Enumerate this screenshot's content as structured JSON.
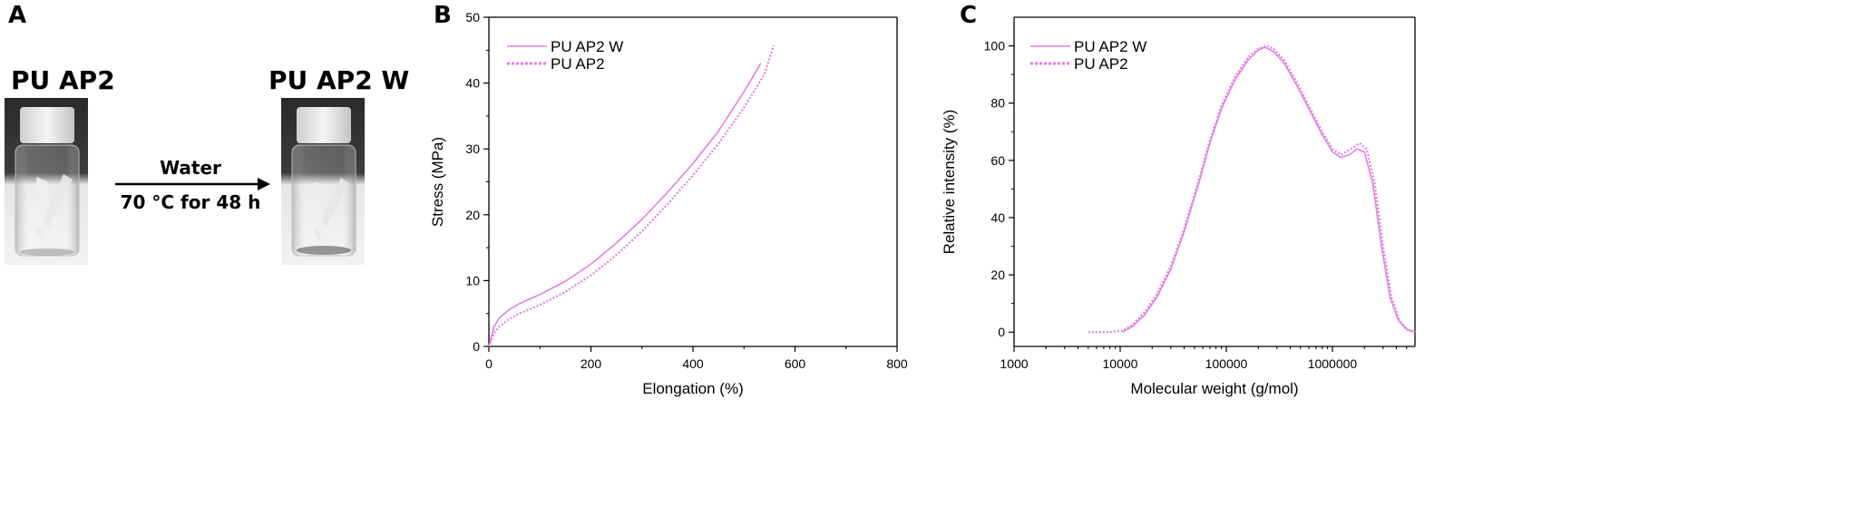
{
  "panels": {
    "a": {
      "letter": "A",
      "left_label": "PU AP2",
      "right_label": "PU AP2 W",
      "arrow_top": "Water",
      "arrow_bottom": "70 °C for 48 h"
    },
    "b": {
      "letter": "B"
    },
    "c": {
      "letter": "C"
    }
  },
  "chart_data": [
    {
      "type": "line",
      "xlabel": "Elongation (%)",
      "ylabel": "Stress (MPa)",
      "xlim": [
        0,
        800
      ],
      "ylim": [
        0,
        50
      ],
      "xticks": [
        0,
        200,
        400,
        600,
        800
      ],
      "yticks": [
        0,
        10,
        20,
        30,
        40,
        50
      ],
      "grid": false,
      "legend": "top-left",
      "series": [
        {
          "name": "PU AP2 W",
          "style": "solid",
          "color": "#e47ee4",
          "x": [
            0,
            10,
            20,
            40,
            60,
            100,
            150,
            200,
            250,
            300,
            350,
            400,
            450,
            500,
            533
          ],
          "y": [
            0,
            3.0,
            4.3,
            5.6,
            6.5,
            7.9,
            9.9,
            12.5,
            15.7,
            19.3,
            23.4,
            27.8,
            32.7,
            38.7,
            43.0
          ]
        },
        {
          "name": "PU AP2",
          "style": "dotted",
          "color": "#e47ee4",
          "x": [
            0,
            10,
            20,
            40,
            60,
            100,
            150,
            200,
            250,
            300,
            350,
            400,
            450,
            500,
            540,
            558
          ],
          "y": [
            0,
            2.0,
            3.0,
            4.2,
            5.0,
            6.3,
            8.3,
            10.8,
            13.9,
            17.5,
            21.6,
            26.0,
            30.8,
            36.3,
            41.3,
            45.7
          ]
        }
      ]
    },
    {
      "type": "line",
      "xlabel": "Molecular weight (g/mol)",
      "ylabel": "Relative intensity (%)",
      "xscale": "log",
      "xlim": [
        1000,
        6000000
      ],
      "ylim": [
        -5,
        110
      ],
      "xticks": [
        1000,
        10000,
        100000,
        1000000
      ],
      "yticks": [
        0,
        20,
        40,
        60,
        80,
        100
      ],
      "grid": false,
      "legend": "top-left",
      "series": [
        {
          "name": "PU AP2 W",
          "style": "solid",
          "color": "#e47ee4",
          "x": [
            10500,
            13000,
            17000,
            22000,
            30000,
            40000,
            55000,
            70000,
            90000,
            120000,
            160000,
            200000,
            230000,
            280000,
            350000,
            450000,
            600000,
            800000,
            1000000,
            1200000,
            1450000,
            1700000,
            2000000,
            2400000,
            2900000,
            3500000,
            4200000,
            5000000,
            6000000
          ],
          "y": [
            0,
            2,
            6,
            12,
            22,
            35,
            52,
            66,
            78,
            88,
            95,
            98.5,
            99.5,
            98,
            94,
            87,
            78,
            69,
            63,
            61,
            62,
            64,
            63,
            52,
            30,
            12,
            4,
            1,
            0
          ]
        },
        {
          "name": "PU AP2",
          "style": "dotted",
          "color": "#e47ee4",
          "x": [
            5000,
            8000,
            10500,
            13000,
            17000,
            22000,
            30000,
            40000,
            55000,
            70000,
            90000,
            120000,
            160000,
            200000,
            240000,
            280000,
            350000,
            450000,
            600000,
            800000,
            1000000,
            1200000,
            1500000,
            1800000,
            2100000,
            2500000,
            3000000,
            3600000,
            4300000,
            5000000,
            6000000
          ],
          "y": [
            0,
            0,
            0.5,
            2.5,
            7,
            13,
            23,
            36,
            53,
            67,
            79,
            89,
            96,
            99,
            100,
            99,
            95,
            88,
            79,
            70,
            64,
            62,
            64,
            66,
            64,
            52,
            30,
            12,
            4,
            1,
            0
          ]
        }
      ]
    }
  ]
}
